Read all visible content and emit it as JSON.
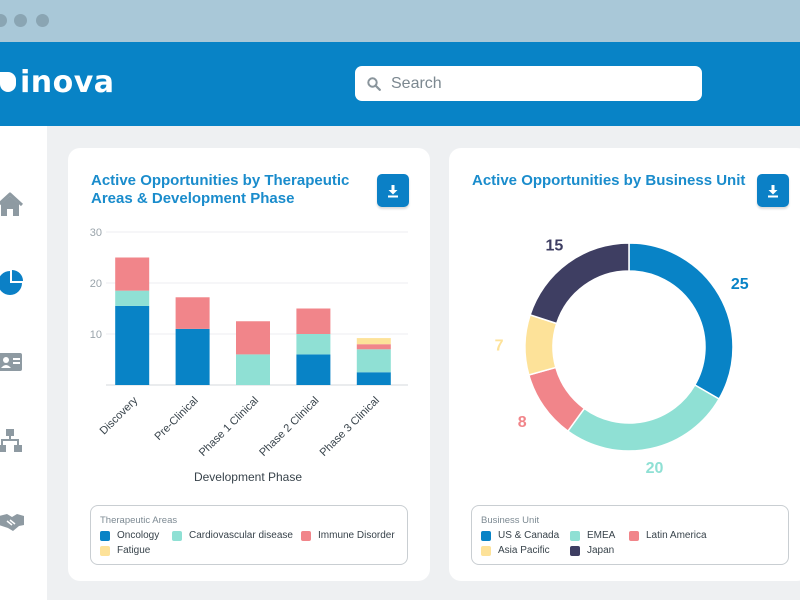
{
  "app": {
    "logo_text": "inova",
    "search_placeholder": "Search"
  },
  "colors": {
    "header": "#0883c6",
    "accent_title": "#1a8ccc",
    "oncology": "#0883c6",
    "cardiovascular": "#8fe0d4",
    "immune": "#f1858a",
    "fatigue": "#fde299",
    "japan": "#3e3e62"
  },
  "sidebar": {
    "items": [
      {
        "icon": "home-icon"
      },
      {
        "icon": "pie-chart-icon"
      },
      {
        "icon": "id-card-icon"
      },
      {
        "icon": "org-chart-icon"
      },
      {
        "icon": "handshake-icon"
      }
    ]
  },
  "bar_card": {
    "title_line1": "Active Opportunities by Therapeutic",
    "title_line2": "Areas & Development Phase",
    "legend_title": "Therapeutic Areas",
    "legend": [
      {
        "label": "Oncology",
        "color": "#0883c6"
      },
      {
        "label": "Cardiovascular disease",
        "color": "#8fe0d4"
      },
      {
        "label": "Immune Disorder",
        "color": "#f1858a"
      },
      {
        "label": "Fatigue",
        "color": "#fde299"
      }
    ]
  },
  "donut_card": {
    "title": "Active Opportunities by Business Unit",
    "legend_title": "Business Unit",
    "legend": [
      {
        "label": "US & Canada",
        "color": "#0883c6"
      },
      {
        "label": "EMEA",
        "color": "#8fe0d4"
      },
      {
        "label": "Latin America",
        "color": "#f1858a"
      },
      {
        "label": "Asia Pacific",
        "color": "#fde299"
      },
      {
        "label": "Japan",
        "color": "#3e3e62"
      }
    ]
  },
  "chart_data": [
    {
      "type": "bar",
      "stacked": true,
      "title": "Active Opportunities by Therapeutic Areas & Development Phase",
      "xlabel": "Development Phase",
      "ylabel": "",
      "ylim": [
        0,
        30
      ],
      "yticks": [
        10,
        20,
        30
      ],
      "categories": [
        "Discovery",
        "Pre-Clinical",
        "Phase 1 Clinical",
        "Phase 2 Clinical",
        "Phase 3 Clinical"
      ],
      "series": [
        {
          "name": "Oncology",
          "color": "#0883c6",
          "values": [
            15.5,
            11,
            0,
            6,
            2.5
          ]
        },
        {
          "name": "Cardiovascular disease",
          "color": "#8fe0d4",
          "values": [
            3,
            0,
            6,
            4,
            4.5
          ]
        },
        {
          "name": "Immune Disorder",
          "color": "#f1858a",
          "values": [
            6.5,
            6.2,
            6.5,
            5,
            1
          ]
        },
        {
          "name": "Fatigue",
          "color": "#fde299",
          "values": [
            0,
            0,
            0,
            0,
            1.2
          ]
        }
      ]
    },
    {
      "type": "pie",
      "donut": true,
      "title": "Active Opportunities by Business Unit",
      "slices": [
        {
          "label": "US & Canada",
          "value": 25,
          "color": "#0883c6"
        },
        {
          "label": "EMEA",
          "value": 20,
          "color": "#8fe0d4"
        },
        {
          "label": "Latin America",
          "value": 8,
          "color": "#f1858a"
        },
        {
          "label": "Asia Pacific",
          "value": 7,
          "color": "#fde299"
        },
        {
          "label": "Japan",
          "value": 15,
          "color": "#3e3e62"
        }
      ]
    }
  ]
}
